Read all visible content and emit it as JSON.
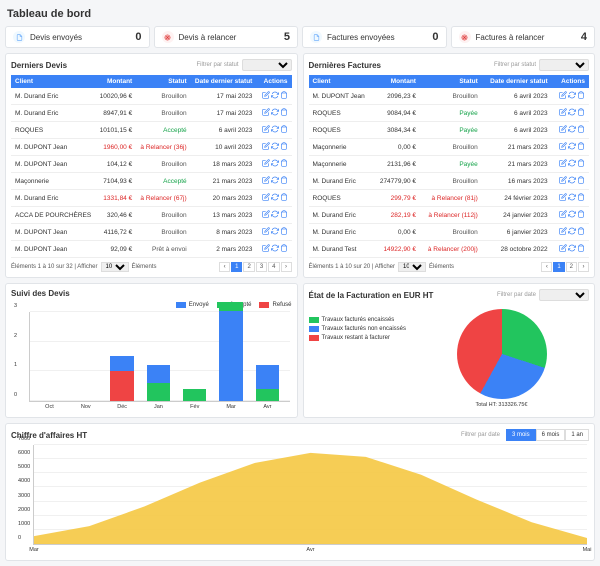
{
  "page_title": "Tableau de bord",
  "kpis": [
    {
      "icon": "paper",
      "icon_bg": "#f0f9ff",
      "icon_fg": "#60a5fa",
      "label": "Devis envoyés",
      "value": "0"
    },
    {
      "icon": "target",
      "icon_bg": "#fef2f2",
      "icon_fg": "#dc2626",
      "label": "Devis à relancer",
      "value": "5"
    },
    {
      "icon": "paper",
      "icon_bg": "#f0f9ff",
      "icon_fg": "#60a5fa",
      "label": "Factures envoyées",
      "value": "0"
    },
    {
      "icon": "target",
      "icon_bg": "#fef2f2",
      "icon_fg": "#dc2626",
      "label": "Factures à relancer",
      "value": "4"
    }
  ],
  "filter_label": "Filtrer par statut",
  "devis": {
    "title": "Derniers Devis",
    "columns": [
      "Client",
      "Montant",
      "Statut",
      "Date dernier statut",
      "Actions"
    ],
    "rows": [
      {
        "client": "M. Durand Eric",
        "amount": "10020,96 €",
        "amount_cls": "",
        "status": "Brouillon",
        "status_cls": "c-gray",
        "date": "17 mai 2023"
      },
      {
        "client": "M. Durand Eric",
        "amount": "8947,91 €",
        "amount_cls": "",
        "status": "Brouillon",
        "status_cls": "c-gray",
        "date": "17 mai 2023"
      },
      {
        "client": "ROQUES",
        "amount": "10101,15 €",
        "amount_cls": "",
        "status": "Accepté",
        "status_cls": "c-green",
        "date": "6 avril 2023"
      },
      {
        "client": "M. DUPONT Jean",
        "amount": "1960,00 €",
        "amount_cls": "c-red",
        "status": "à Relancer (36j)",
        "status_cls": "c-red",
        "date": "10 avril 2023"
      },
      {
        "client": "M. DUPONT Jean",
        "amount": "104,12 €",
        "amount_cls": "",
        "status": "Brouillon",
        "status_cls": "c-gray",
        "date": "18 mars 2023"
      },
      {
        "client": "Maçonnerie",
        "amount": "7104,93 €",
        "amount_cls": "",
        "status": "Accepté",
        "status_cls": "c-green",
        "date": "21 mars 2023"
      },
      {
        "client": "M. Durand Eric",
        "amount": "1331,84 €",
        "amount_cls": "c-red",
        "status": "à Relancer (67j)",
        "status_cls": "c-red",
        "date": "20 mars 2023"
      },
      {
        "client": "ACCA DE POURCHÈRES",
        "amount": "320,46 €",
        "amount_cls": "",
        "status": "Brouillon",
        "status_cls": "c-gray",
        "date": "13 mars 2023"
      },
      {
        "client": "M. DUPONT Jean",
        "amount": "4116,72 €",
        "amount_cls": "",
        "status": "Brouillon",
        "status_cls": "c-gray",
        "date": "8 mars 2023"
      },
      {
        "client": "M. DUPONT Jean",
        "amount": "92,09 €",
        "amount_cls": "",
        "status": "Prêt à envoi",
        "status_cls": "c-gray",
        "date": "2 mars 2023"
      }
    ],
    "pager_info": "Éléments 1 à 10 sur 32",
    "pager_mid": "Afficher",
    "pager_unit": "Éléments",
    "pager_sel": "10",
    "pages": [
      "1",
      "2",
      "3",
      "4"
    ]
  },
  "factures": {
    "title": "Dernières Factures",
    "columns": [
      "Client",
      "Montant",
      "Statut",
      "Date dernier statut",
      "Actions"
    ],
    "rows": [
      {
        "client": "M. DUPONT Jean",
        "amount": "2096,23 €",
        "amount_cls": "",
        "status": "Brouillon",
        "status_cls": "c-gray",
        "date": "6 avril 2023"
      },
      {
        "client": "ROQUES",
        "amount": "9084,94 €",
        "amount_cls": "",
        "status": "Payée",
        "status_cls": "c-green",
        "date": "6 avril 2023"
      },
      {
        "client": "ROQUES",
        "amount": "3084,34 €",
        "amount_cls": "",
        "status": "Payée",
        "status_cls": "c-green",
        "date": "6 avril 2023"
      },
      {
        "client": "Maçonnerie",
        "amount": "0,00 €",
        "amount_cls": "",
        "status": "Brouillon",
        "status_cls": "c-gray",
        "date": "21 mars 2023"
      },
      {
        "client": "Maçonnerie",
        "amount": "2131,96 €",
        "amount_cls": "",
        "status": "Payée",
        "status_cls": "c-green",
        "date": "21 mars 2023"
      },
      {
        "client": "M. Durand Eric",
        "amount": "274779,90 €",
        "amount_cls": "",
        "status": "Brouillon",
        "status_cls": "c-gray",
        "date": "16 mars 2023"
      },
      {
        "client": "ROQUES",
        "amount": "299,79 €",
        "amount_cls": "c-red",
        "status": "à Relancer (81j)",
        "status_cls": "c-red",
        "date": "24 février 2023"
      },
      {
        "client": "M. Durand Eric",
        "amount": "282,19 €",
        "amount_cls": "c-red",
        "status": "à Relancer (112j)",
        "status_cls": "c-red",
        "date": "24 janvier 2023"
      },
      {
        "client": "M. Durand Eric",
        "amount": "0,00 €",
        "amount_cls": "",
        "status": "Brouillon",
        "status_cls": "c-gray",
        "date": "6 janvier 2023"
      },
      {
        "client": "M. Durand Test",
        "amount": "14922,90 €",
        "amount_cls": "c-red",
        "status": "à Relancer (200j)",
        "status_cls": "c-red",
        "date": "28 octobre 2022"
      }
    ],
    "pager_info": "Éléments 1 à 10 sur 20",
    "pager_mid": "Afficher",
    "pager_unit": "Éléments",
    "pager_sel": "10",
    "pages": [
      "1",
      "2"
    ]
  },
  "suivi": {
    "title": "Suivi des Devis",
    "legend": [
      {
        "label": "Envoyé",
        "color": "#3b82f6"
      },
      {
        "label": "Accepté",
        "color": "#22c55e"
      },
      {
        "label": "Refusé",
        "color": "#ef4444"
      }
    ],
    "months": [
      "Oct",
      "Nov",
      "Déc",
      "Jan",
      "Fév",
      "Mar",
      "Avr"
    ],
    "ymax": 3,
    "yticks": [
      0,
      1,
      2,
      3
    ],
    "bars": [
      {
        "seg": [
          {
            "v": 0,
            "c": "#3b82f6"
          }
        ]
      },
      {
        "seg": [
          {
            "v": 0,
            "c": "#3b82f6"
          }
        ]
      },
      {
        "seg": [
          {
            "v": 1,
            "c": "#ef4444"
          },
          {
            "v": 0.5,
            "c": "#3b82f6"
          }
        ]
      },
      {
        "seg": [
          {
            "v": 0.6,
            "c": "#22c55e"
          },
          {
            "v": 0.6,
            "c": "#3b82f6"
          }
        ]
      },
      {
        "seg": [
          {
            "v": 0.4,
            "c": "#22c55e"
          }
        ]
      },
      {
        "seg": [
          {
            "v": 3,
            "c": "#3b82f6"
          },
          {
            "v": 0.3,
            "c": "#22c55e"
          }
        ]
      },
      {
        "seg": [
          {
            "v": 0.4,
            "c": "#22c55e"
          },
          {
            "v": 0.8,
            "c": "#3b82f6"
          }
        ]
      }
    ]
  },
  "etat": {
    "title": "État de la Facturation en EUR HT",
    "filter": "Filtrer par date",
    "legend": [
      {
        "label": "Travaux facturés encaissés",
        "color": "#22c55e"
      },
      {
        "label": "Travaux facturés non encaissés",
        "color": "#3b82f6"
      },
      {
        "label": "Travaux restant à facturer",
        "color": "#ef4444"
      }
    ],
    "slices": [
      {
        "pct": 30,
        "color": "#22c55e"
      },
      {
        "pct": 28,
        "color": "#3b82f6"
      },
      {
        "pct": 42,
        "color": "#ef4444"
      }
    ],
    "total_label": "Total HT: 313326.75€"
  },
  "ca": {
    "title": "Chiffre d'affaires HT",
    "filter": "Filtrer par date",
    "buttons": [
      "3 mois",
      "6 mois",
      "1 an"
    ],
    "active": 0,
    "ymax": 7000,
    "yticks": [
      0,
      1000,
      2000,
      3000,
      4000,
      5000,
      6000,
      7000
    ],
    "xlabels": [
      "Mar",
      "Avr",
      "Mai"
    ],
    "area_color": "#f5c842",
    "points": [
      [
        0,
        8
      ],
      [
        10,
        18
      ],
      [
        20,
        38
      ],
      [
        30,
        62
      ],
      [
        40,
        82
      ],
      [
        50,
        92
      ],
      [
        60,
        88
      ],
      [
        70,
        70
      ],
      [
        80,
        45
      ],
      [
        90,
        22
      ],
      [
        100,
        6
      ]
    ]
  }
}
